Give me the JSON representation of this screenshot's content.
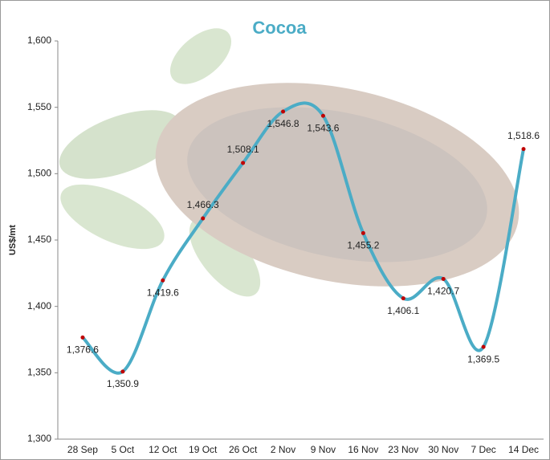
{
  "chart_data": {
    "type": "line",
    "title": "Cocoa",
    "y_label": "US$/mt",
    "categories": [
      "28 Sep",
      "5 Oct",
      "12 Oct",
      "19 Oct",
      "26 Oct",
      "2 Nov",
      "9 Nov",
      "16 Nov",
      "23 Nov",
      "30 Nov",
      "7 Dec",
      "14 Dec"
    ],
    "values": [
      1376.6,
      1350.9,
      1419.6,
      1466.3,
      1508.1,
      1546.8,
      1543.6,
      1455.2,
      1406.1,
      1420.7,
      1369.5,
      1518.6
    ],
    "value_labels": [
      "1,376.6",
      "1,350.9",
      "1,419.6",
      "1,466.3",
      "1,508.1",
      "1,546.8",
      "1,543.6",
      "1,455.2",
      "1,406.1",
      "1,420.7",
      "1,369.5",
      "1,518.6"
    ],
    "color": "#4bacc6",
    "marker_color": "#c00000",
    "ylim": [
      1300,
      1600
    ],
    "yticks": [
      {
        "value": 1300,
        "label": "1,300"
      },
      {
        "value": 1350,
        "label": "1,350"
      },
      {
        "value": 1400,
        "label": "1,400"
      },
      {
        "value": 1450,
        "label": "1,450"
      },
      {
        "value": 1500,
        "label": "1,500"
      },
      {
        "value": 1550,
        "label": "1,550"
      },
      {
        "value": 1600,
        "label": "1,600"
      }
    ],
    "grid": false
  }
}
